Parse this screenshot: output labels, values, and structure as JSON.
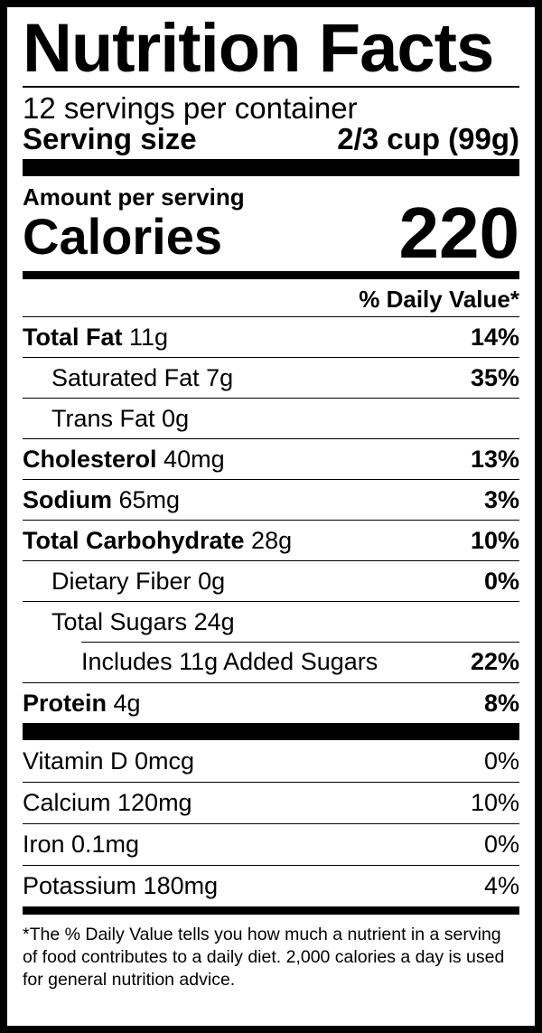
{
  "title": "Nutrition Facts",
  "servings_per_container": "12 servings per container",
  "serving_size": {
    "label": "Serving size",
    "value": "2/3 cup (99g)"
  },
  "amount_per_serving": "Amount per serving",
  "calories": {
    "label": "Calories",
    "value": "220"
  },
  "daily_value_header": "% Daily Value*",
  "nutrients": [
    {
      "name": "Total Fat",
      "amount": "11g",
      "dv": "14%"
    },
    {
      "name": "Saturated Fat",
      "amount": "7g",
      "dv": "35%"
    },
    {
      "name": "Trans Fat",
      "amount": "0g",
      "dv": ""
    },
    {
      "name": "Cholesterol",
      "amount": "40mg",
      "dv": "13%"
    },
    {
      "name": "Sodium",
      "amount": "65mg",
      "dv": "3%"
    },
    {
      "name": "Total Carbohydrate",
      "amount": "28g",
      "dv": "10%"
    },
    {
      "name": "Dietary Fiber",
      "amount": "0g",
      "dv": "0%"
    },
    {
      "name": "Total Sugars",
      "amount": "24g",
      "dv": ""
    },
    {
      "name": "Includes 11g Added Sugars",
      "amount": "",
      "dv": "22%"
    },
    {
      "name": "Protein",
      "amount": "4g",
      "dv": "8%"
    }
  ],
  "vitamins": [
    {
      "name": "Vitamin D 0mcg",
      "dv": "0%"
    },
    {
      "name": "Calcium 120mg",
      "dv": "10%"
    },
    {
      "name": "Iron 0.1mg",
      "dv": "0%"
    },
    {
      "name": "Potassium 180mg",
      "dv": "4%"
    }
  ],
  "footnote": "*The % Daily Value tells you how much a nutrient in a serving of food contributes to a daily diet. 2,000 calories a day is used for general nutrition advice."
}
